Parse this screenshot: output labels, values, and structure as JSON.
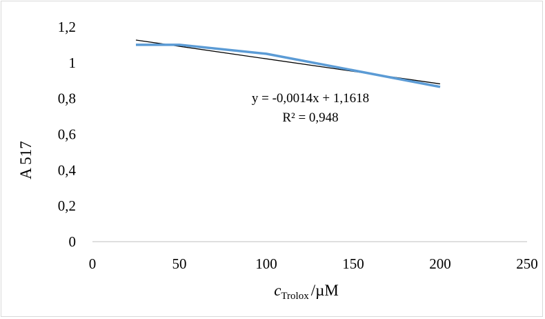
{
  "chart_data": {
    "type": "line",
    "title": "",
    "xlabel_main": "c",
    "xlabel_sub": "Trolox",
    "xlabel_unit": "/µM",
    "ylabel": "A 517",
    "xlim": [
      0,
      250
    ],
    "ylim": [
      0,
      1.2
    ],
    "x_ticks": [
      0,
      50,
      100,
      150,
      200,
      250
    ],
    "y_ticks": [
      0,
      0.2,
      0.4,
      0.6,
      0.8,
      1.0,
      1.2
    ],
    "x_tick_labels": [
      "0",
      "50",
      "100",
      "150",
      "200",
      "250"
    ],
    "y_tick_labels": [
      "0",
      "0,2",
      "0,4",
      "0,6",
      "0,8",
      "1",
      "1,2"
    ],
    "grid": false,
    "series": [
      {
        "color": "#5b9bd5",
        "x": [
          25,
          50,
          100,
          200
        ],
        "y": [
          1.1,
          1.1,
          1.05,
          0.865
        ]
      }
    ],
    "trendline": {
      "color": "#000000",
      "slope": -0.0014,
      "intercept": 1.1618,
      "x_range": [
        25,
        200
      ],
      "equation": "y = -0,0014x + 1,1618",
      "r_squared": "R² = 0,948"
    }
  }
}
